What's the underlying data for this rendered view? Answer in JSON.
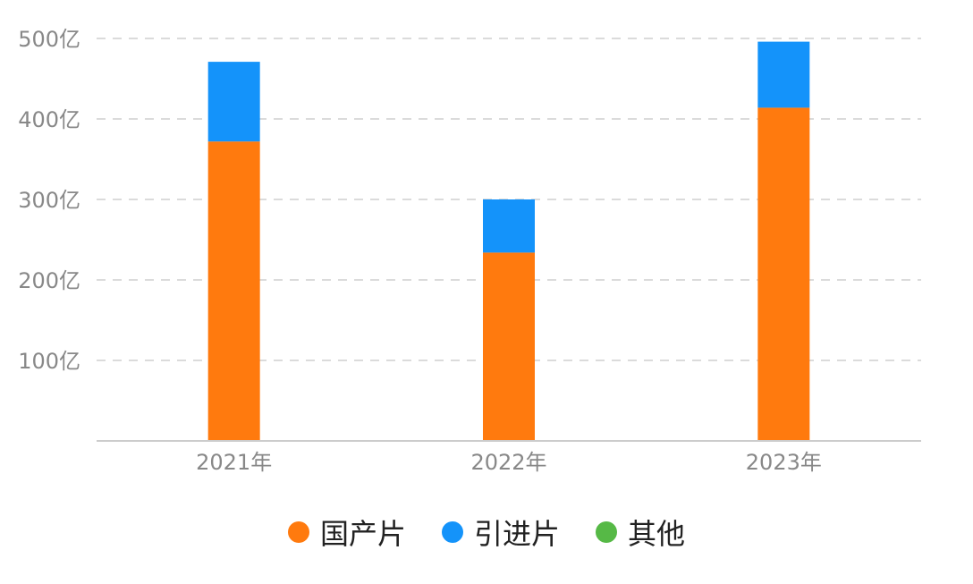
{
  "chart_data": {
    "type": "bar",
    "stacked": true,
    "categories": [
      "2021年",
      "2022年",
      "2023年"
    ],
    "series": [
      {
        "name": "国产片",
        "values": [
          372,
          234,
          414
        ],
        "color": "#FF7A0E"
      },
      {
        "name": "引进片",
        "values": [
          99,
          66,
          82
        ],
        "color": "#1493FA"
      },
      {
        "name": "其他",
        "values": [
          0,
          0,
          0
        ],
        "color": "#56B946"
      }
    ],
    "ylim": [
      0,
      500
    ],
    "yticks": [
      {
        "value": 100,
        "label": "100亿"
      },
      {
        "value": 200,
        "label": "200亿"
      },
      {
        "value": 300,
        "label": "300亿"
      },
      {
        "value": 400,
        "label": "400亿"
      },
      {
        "value": 500,
        "label": "500亿"
      }
    ],
    "grid": true,
    "legend_position": "bottom",
    "title": "",
    "xlabel": "",
    "ylabel": ""
  }
}
